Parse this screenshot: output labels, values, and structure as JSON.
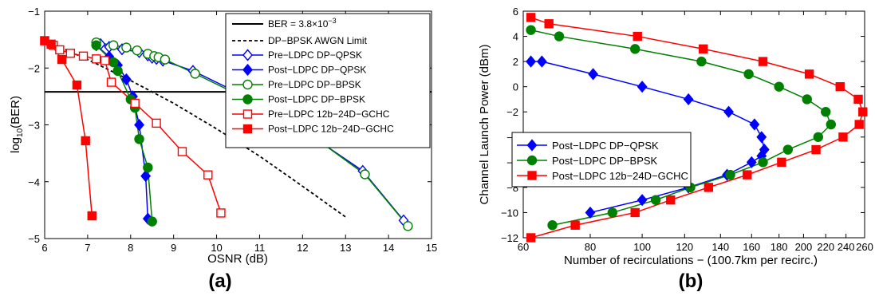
{
  "chart_data": [
    {
      "type": "line",
      "panel_label": "(a)",
      "xlabel": "OSNR (dB)",
      "ylabel": "log",
      "ylabel_sub": "10",
      "ylabel_suffix": "(BER)",
      "xlim": [
        6,
        15
      ],
      "ylim": [
        -5,
        -1
      ],
      "xticks": [
        6,
        7,
        8,
        9,
        10,
        11,
        12,
        13,
        14,
        15
      ],
      "yticks": [
        -5,
        -4,
        -3,
        -2,
        -1
      ],
      "grid": false,
      "legend_position": "top-right",
      "reference_lines": [
        {
          "name": "BER = 3.8×10",
          "name_sup": "−3",
          "y": -2.42,
          "style": "solid",
          "color": "#000000"
        },
        {
          "name": "DP−BPSK AWGN Limit",
          "style": "dashed",
          "color": "#000000",
          "x": [
            6,
            7,
            8,
            9,
            10,
            11,
            12,
            13
          ],
          "y": [
            -1.52,
            -1.85,
            -2.22,
            -2.62,
            -3.07,
            -3.55,
            -4.08,
            -4.62
          ]
        }
      ],
      "series": [
        {
          "name": "Pre−LDPC DP−QPSK",
          "color": "#0000ff",
          "marker": "diamond",
          "filled": false,
          "x": [
            7.3,
            7.5,
            7.8,
            8.2,
            8.4,
            8.5,
            8.6,
            8.75,
            9.45,
            10.4,
            11.4,
            12.35,
            13.4,
            14.35
          ],
          "y": [
            -1.58,
            -1.63,
            -1.67,
            -1.72,
            -1.78,
            -1.82,
            -1.84,
            -1.87,
            -2.05,
            -2.4,
            -2.83,
            -3.27,
            -3.81,
            -4.68
          ]
        },
        {
          "name": "Post−LDPC DP−QPSK",
          "color": "#0000ff",
          "marker": "diamond",
          "filled": true,
          "x": [
            7.2,
            7.5,
            7.7,
            7.9,
            8.05,
            8.2,
            8.35,
            8.4
          ],
          "y": [
            -1.6,
            -1.8,
            -1.95,
            -2.2,
            -2.5,
            -3.0,
            -3.9,
            -4.65
          ]
        },
        {
          "name": "Pre−LDPC DP−BPSK",
          "color": "#008000",
          "marker": "circle",
          "filled": false,
          "x": [
            7.2,
            7.6,
            7.9,
            8.15,
            8.4,
            8.55,
            8.65,
            8.8,
            9.5,
            10.45,
            11.45,
            12.45,
            13.45,
            14.45
          ],
          "y": [
            -1.55,
            -1.6,
            -1.64,
            -1.69,
            -1.75,
            -1.79,
            -1.81,
            -1.85,
            -2.1,
            -2.45,
            -2.87,
            -3.32,
            -3.87,
            -4.78
          ]
        },
        {
          "name": "Post−LDPC DP−BPSK",
          "color": "#008000",
          "marker": "circle",
          "filled": true,
          "x": [
            7.2,
            7.6,
            7.7,
            8.0,
            8.1,
            8.2,
            8.4,
            8.5
          ],
          "y": [
            -1.6,
            -1.9,
            -2.05,
            -2.55,
            -2.7,
            -3.25,
            -3.75,
            -4.7
          ]
        },
        {
          "name": "Pre−LDPC 12b−24D−GCHC",
          "color": "#ff0000",
          "marker": "square",
          "filled": false,
          "x": [
            6.0,
            6.2,
            6.35,
            6.6,
            6.9,
            7.2,
            7.4,
            7.55,
            8.1,
            8.6,
            9.2,
            9.8,
            10.1
          ],
          "y": [
            -1.52,
            -1.6,
            -1.68,
            -1.74,
            -1.79,
            -1.84,
            -1.87,
            -2.25,
            -2.62,
            -2.97,
            -3.47,
            -3.88,
            -4.55
          ]
        },
        {
          "name": "Post−LDPC 12b−24D−GCHC",
          "color": "#ff0000",
          "marker": "square",
          "filled": true,
          "x": [
            6.0,
            6.15,
            6.4,
            6.75,
            6.95,
            7.1
          ],
          "y": [
            -1.52,
            -1.58,
            -1.85,
            -2.3,
            -3.28,
            -4.6
          ]
        }
      ]
    },
    {
      "type": "line",
      "panel_label": "(b)",
      "xlabel": "Number of recirculations − (100.7km per recirc.)",
      "ylabel": "Channel Launch Power (dBm)",
      "xscale": "log",
      "xlim": [
        60,
        260
      ],
      "ylim": [
        -12,
        6
      ],
      "xticks": [
        60,
        80,
        100,
        120,
        140,
        160,
        180,
        200,
        220,
        240,
        260
      ],
      "yticks": [
        -12,
        -10,
        -8,
        -6,
        -4,
        -2,
        0,
        2,
        4,
        6
      ],
      "grid": false,
      "legend_position": "middle-left",
      "series": [
        {
          "name": "Post−LDPC DP−QPSK",
          "color": "#0000ff",
          "marker": "diamond",
          "filled": true,
          "x": [
            62,
            65,
            81,
            100,
            122,
            145,
            162,
            167,
            169,
            167,
            160,
            144,
            122,
            100,
            80
          ],
          "y": [
            2,
            2,
            1,
            0,
            -1,
            -2,
            -3,
            -4,
            -5,
            -5.5,
            -6,
            -7,
            -8,
            -9,
            -10
          ]
        },
        {
          "name": "Post−LDPC DP−BPSK",
          "color": "#008000",
          "marker": "circle",
          "filled": true,
          "x": [
            62,
            70,
            97,
            129,
            158,
            180,
            203,
            220,
            225,
            213,
            187,
            168,
            146,
            123,
            106,
            88,
            68
          ],
          "y": [
            4.5,
            4,
            3,
            2,
            1,
            0,
            -1,
            -2,
            -3,
            -4,
            -5,
            -6,
            -7,
            -8,
            -9,
            -10,
            -11
          ]
        },
        {
          "name": "Post−LDPC 12b−24D−GCHC",
          "color": "#ff0000",
          "marker": "square",
          "filled": true,
          "x": [
            62,
            67,
            98,
            130,
            168,
            205,
            234,
            253,
            258,
            254,
            237,
            211,
            182,
            157,
            133,
            113,
            97,
            75,
            62
          ],
          "y": [
            5.5,
            5,
            4,
            3,
            2,
            1,
            0,
            -1,
            -2,
            -3,
            -4,
            -5,
            -6,
            -7,
            -8,
            -9,
            -10,
            -11,
            -12
          ]
        }
      ]
    }
  ]
}
